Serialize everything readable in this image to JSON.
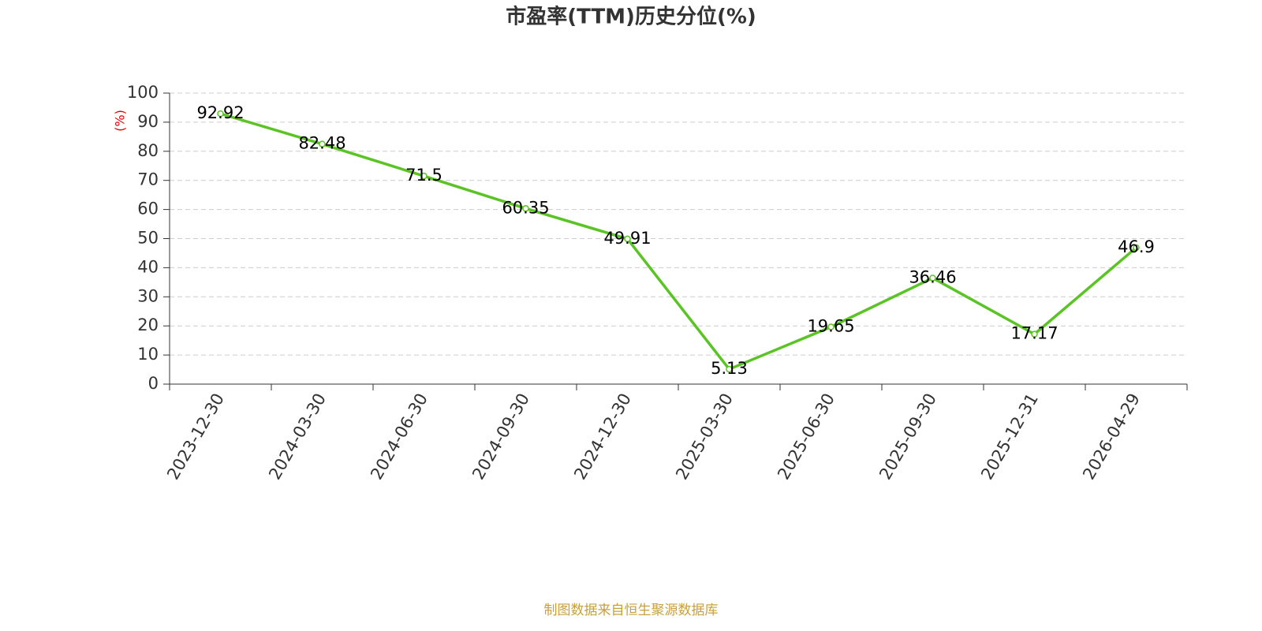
{
  "chart_data": {
    "type": "line",
    "title": "市盈率(TTM)历史分位(%)",
    "y_label": "(%)",
    "source": "制图数据来自恒生聚源数据库",
    "categories": [
      "2023-12-30",
      "2024-03-30",
      "2024-06-30",
      "2024-09-30",
      "2024-12-30",
      "2025-03-30",
      "2025-06-30",
      "2025-09-30",
      "2025-12-31",
      "2026-04-29"
    ],
    "values": [
      92.92,
      82.48,
      71.5,
      60.35,
      49.91,
      5.13,
      19.65,
      36.46,
      17.17,
      46.9
    ],
    "color": "#5bc425",
    "ylim": [
      0,
      100
    ],
    "yticks": [
      0,
      10,
      20,
      30,
      40,
      50,
      60,
      70,
      80,
      90,
      100
    ],
    "grid": true
  }
}
